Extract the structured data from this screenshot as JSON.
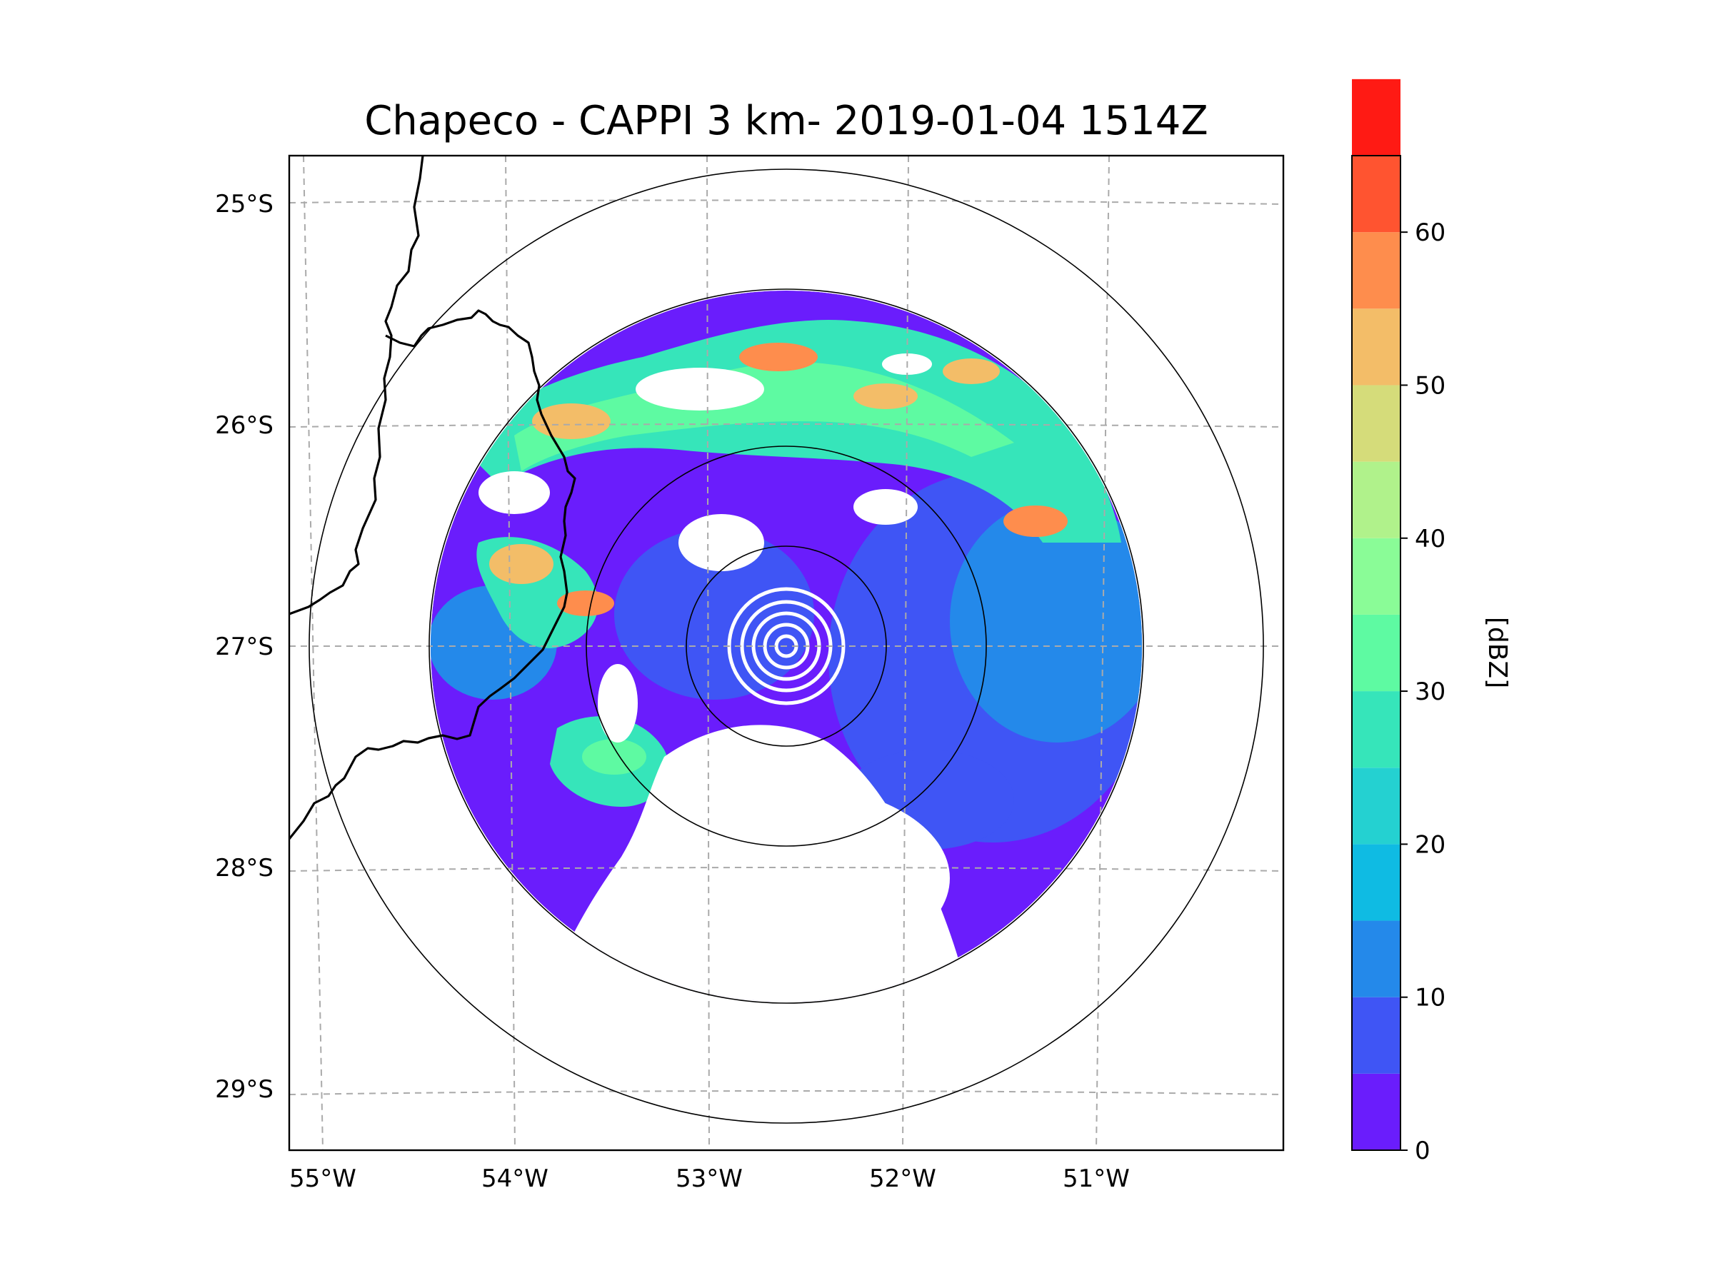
{
  "figure": {
    "title": "Chapeco - CAPPI 3 km- 2019-01-04 1514Z"
  },
  "map": {
    "lat_ticks": [
      "25°S",
      "26°S",
      "27°S",
      "28°S",
      "29°S"
    ],
    "lon_ticks": [
      "55°W",
      "54°W",
      "53°W",
      "52°W",
      "51°W"
    ],
    "gridlines": true,
    "range_rings": 4
  },
  "colorbar": {
    "label": "[dBZ]",
    "tick_labels": [
      "0",
      "10",
      "20",
      "30",
      "40",
      "50",
      "60"
    ],
    "min": 0,
    "max": 65,
    "step": 5,
    "colors": [
      "#6a1dfc",
      "#3f55f5",
      "#2489ea",
      "#0fbbe3",
      "#24d1d1",
      "#36e5ba",
      "#5efaa2",
      "#8afc97",
      "#b0f28b",
      "#d5dc7a",
      "#f3bd68",
      "#fe8d4d",
      "#ff5430",
      "#ff1a14"
    ]
  },
  "colors": {
    "no_echo": "#ffffff",
    "border": "#000000",
    "grid": "#aaaaaa"
  }
}
